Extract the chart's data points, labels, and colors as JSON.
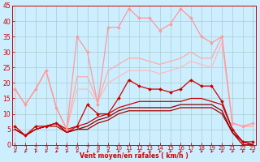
{
  "x": [
    0,
    1,
    2,
    3,
    4,
    5,
    6,
    7,
    8,
    9,
    10,
    11,
    12,
    13,
    14,
    15,
    16,
    17,
    18,
    19,
    20,
    21,
    22,
    23
  ],
  "background_color": "#cceeff",
  "grid_color": "#aacccc",
  "xlabel": "Vent moyen/en rafales ( km/h )",
  "xlabel_color": "#cc0000",
  "tick_color": "#cc0000",
  "lines": [
    {
      "y": [
        6,
        3,
        6,
        6,
        7,
        5,
        6,
        13,
        10,
        10,
        15,
        21,
        19,
        18,
        18,
        17,
        18,
        21,
        19,
        19,
        14,
        5,
        1,
        1
      ],
      "color": "#cc0000",
      "lw": 0.9,
      "marker": "D",
      "ms": 2.0,
      "zorder": 5
    },
    {
      "y": [
        5,
        3,
        5,
        6,
        7,
        4,
        6,
        7,
        9,
        10,
        12,
        13,
        14,
        14,
        14,
        14,
        14,
        15,
        15,
        14,
        13,
        5,
        1,
        0
      ],
      "color": "#cc0000",
      "lw": 0.9,
      "marker": null,
      "ms": 0,
      "zorder": 4
    },
    {
      "y": [
        5,
        3,
        5,
        6,
        7,
        4,
        5,
        6,
        8,
        9,
        11,
        12,
        12,
        12,
        12,
        12,
        13,
        13,
        13,
        13,
        11,
        4,
        1,
        0
      ],
      "color": "#880000",
      "lw": 0.9,
      "marker": null,
      "ms": 0,
      "zorder": 3
    },
    {
      "y": [
        5,
        3,
        5,
        6,
        6,
        4,
        5,
        5,
        7,
        8,
        10,
        11,
        11,
        11,
        11,
        11,
        12,
        12,
        12,
        12,
        10,
        4,
        0,
        0
      ],
      "color": "#aa0000",
      "lw": 0.9,
      "marker": null,
      "ms": 0,
      "zorder": 2
    },
    {
      "y": [
        18,
        13,
        18,
        24,
        12,
        5,
        35,
        30,
        13,
        38,
        38,
        44,
        41,
        41,
        37,
        39,
        44,
        41,
        35,
        33,
        35,
        7,
        6,
        7
      ],
      "color": "#ff9999",
      "lw": 0.9,
      "marker": "D",
      "ms": 2.0,
      "zorder": 5
    },
    {
      "y": [
        18,
        13,
        18,
        24,
        12,
        5,
        22,
        22,
        14,
        24,
        26,
        28,
        28,
        27,
        26,
        27,
        28,
        30,
        28,
        28,
        35,
        7,
        6,
        6
      ],
      "color": "#ffaaaa",
      "lw": 0.9,
      "marker": null,
      "ms": 0,
      "zorder": 3
    },
    {
      "y": [
        18,
        13,
        18,
        24,
        12,
        5,
        18,
        18,
        14,
        20,
        22,
        24,
        24,
        24,
        23,
        24,
        25,
        27,
        26,
        25,
        33,
        7,
        6,
        6
      ],
      "color": "#ffbbbb",
      "lw": 0.9,
      "marker": null,
      "ms": 0,
      "zorder": 2
    }
  ],
  "ylim": [
    0,
    45
  ],
  "yticks": [
    0,
    5,
    10,
    15,
    20,
    25,
    30,
    35,
    40,
    45
  ],
  "xlim": [
    -0.3,
    23.3
  ],
  "xticks": [
    0,
    1,
    2,
    3,
    4,
    5,
    6,
    7,
    8,
    9,
    10,
    11,
    12,
    13,
    14,
    15,
    16,
    17,
    18,
    19,
    20,
    21,
    22,
    23
  ]
}
